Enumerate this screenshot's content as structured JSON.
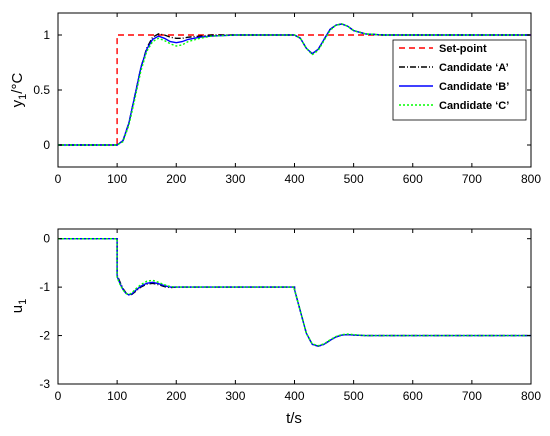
{
  "chart_data": [
    {
      "type": "line",
      "ylabel": "y",
      "ylabel_sub": "1",
      "ylabel_unit": "/°C",
      "xlim": [
        0,
        800
      ],
      "ylim": [
        -0.2,
        1.2
      ],
      "xticks": [
        "0",
        "100",
        "200",
        "300",
        "400",
        "500",
        "600",
        "700",
        "800"
      ],
      "yticks": [
        "0",
        "0.5",
        "1"
      ],
      "ytick_values": [
        0,
        0.5,
        1
      ],
      "grid": false,
      "legend_position": "right",
      "series": [
        {
          "name": "Set-point",
          "color": "#ff0000",
          "dash": "6,4",
          "x": [
            0,
            100,
            100,
            800
          ],
          "y": [
            0,
            0,
            1,
            1
          ]
        },
        {
          "name": "Candidate ‘A’",
          "color": "#000000",
          "dash": "6,2,1,2",
          "x": [
            0,
            100,
            110,
            120,
            130,
            140,
            150,
            160,
            170,
            180,
            190,
            200,
            210,
            220,
            240,
            260,
            300,
            350,
            400,
            410,
            420,
            430,
            440,
            450,
            460,
            470,
            480,
            490,
            500,
            520,
            550,
            600,
            800
          ],
          "y": [
            0,
            0,
            0.04,
            0.2,
            0.45,
            0.7,
            0.88,
            0.98,
            1.01,
            1.0,
            0.98,
            0.97,
            0.97,
            0.98,
            0.99,
            1.0,
            1.0,
            1.0,
            1.0,
            0.97,
            0.88,
            0.83,
            0.87,
            0.96,
            1.05,
            1.09,
            1.1,
            1.08,
            1.04,
            1.01,
            1.0,
            1.0,
            1.0
          ]
        },
        {
          "name": "Candidate ‘B’",
          "color": "#0000ff",
          "dash": "",
          "x": [
            0,
            100,
            110,
            120,
            130,
            140,
            150,
            160,
            170,
            180,
            190,
            200,
            210,
            220,
            240,
            260,
            300,
            350,
            400,
            410,
            420,
            430,
            440,
            450,
            460,
            470,
            480,
            490,
            500,
            520,
            550,
            600,
            800
          ],
          "y": [
            0,
            0,
            0.04,
            0.2,
            0.45,
            0.7,
            0.87,
            0.96,
            0.99,
            0.97,
            0.94,
            0.93,
            0.94,
            0.96,
            0.98,
            0.99,
            1.0,
            1.0,
            1.0,
            0.97,
            0.88,
            0.83,
            0.87,
            0.96,
            1.05,
            1.09,
            1.1,
            1.08,
            1.04,
            1.01,
            1.0,
            1.0,
            1.0
          ]
        },
        {
          "name": "Candidate ‘C’",
          "color": "#00ff00",
          "dash": "2,2",
          "x": [
            0,
            100,
            110,
            120,
            130,
            140,
            150,
            160,
            170,
            180,
            190,
            200,
            210,
            220,
            240,
            260,
            300,
            350,
            400,
            410,
            420,
            430,
            440,
            450,
            460,
            470,
            480,
            490,
            500,
            520,
            550,
            600,
            800
          ],
          "y": [
            0,
            0,
            0.03,
            0.18,
            0.42,
            0.67,
            0.85,
            0.94,
            0.97,
            0.95,
            0.92,
            0.9,
            0.91,
            0.94,
            0.97,
            0.99,
            1.0,
            1.0,
            1.0,
            0.97,
            0.88,
            0.82,
            0.86,
            0.95,
            1.04,
            1.09,
            1.1,
            1.08,
            1.04,
            1.01,
            1.0,
            1.0,
            1.0
          ]
        }
      ]
    },
    {
      "type": "line",
      "xlabel": "t/s",
      "ylabel": "u",
      "ylabel_sub": "1",
      "xlim": [
        0,
        800
      ],
      "ylim": [
        -3,
        0.2
      ],
      "xticks": [
        "0",
        "100",
        "200",
        "300",
        "400",
        "500",
        "600",
        "700",
        "800"
      ],
      "yticks": [
        "0",
        "-1",
        "-2",
        "-3"
      ],
      "ytick_values": [
        0,
        -1,
        -2,
        -3
      ],
      "grid": false,
      "series": [
        {
          "name": "Candidate ‘A’",
          "color": "#000000",
          "dash": "6,2,1,2",
          "x": [
            0,
            100,
            100,
            105,
            110,
            115,
            120,
            125,
            130,
            140,
            150,
            160,
            170,
            180,
            190,
            200,
            220,
            250,
            300,
            400,
            400,
            410,
            420,
            430,
            440,
            450,
            460,
            470,
            480,
            490,
            500,
            520,
            550,
            600,
            800
          ],
          "y": [
            0,
            0,
            -0.75,
            -0.9,
            -1.03,
            -1.12,
            -1.16,
            -1.15,
            -1.1,
            -1.0,
            -0.94,
            -0.92,
            -0.95,
            -0.99,
            -1.01,
            -1.0,
            -1.0,
            -1.0,
            -1.0,
            -1.0,
            -1.05,
            -1.5,
            -1.95,
            -2.18,
            -2.22,
            -2.18,
            -2.1,
            -2.03,
            -1.99,
            -1.98,
            -1.99,
            -2.0,
            -2.0,
            -2.0,
            -2.0
          ]
        },
        {
          "name": "Candidate ‘B’",
          "color": "#0000ff",
          "dash": "",
          "x": [
            0,
            100,
            100,
            105,
            110,
            115,
            120,
            125,
            130,
            140,
            150,
            160,
            170,
            180,
            190,
            200,
            220,
            250,
            300,
            400,
            400,
            410,
            420,
            430,
            440,
            450,
            460,
            470,
            480,
            490,
            500,
            520,
            550,
            600,
            800
          ],
          "y": [
            0,
            0,
            -0.78,
            -0.93,
            -1.05,
            -1.13,
            -1.16,
            -1.14,
            -1.08,
            -0.98,
            -0.92,
            -0.9,
            -0.93,
            -0.97,
            -1.0,
            -1.0,
            -1.0,
            -1.0,
            -1.0,
            -1.0,
            -1.05,
            -1.5,
            -1.95,
            -2.18,
            -2.22,
            -2.18,
            -2.1,
            -2.03,
            -1.99,
            -1.98,
            -1.99,
            -2.0,
            -2.0,
            -2.0,
            -2.0
          ]
        },
        {
          "name": "Candidate ‘C’",
          "color": "#00ff00",
          "dash": "2,2",
          "x": [
            0,
            100,
            100,
            105,
            110,
            115,
            120,
            125,
            130,
            140,
            150,
            160,
            170,
            180,
            190,
            200,
            220,
            250,
            300,
            400,
            400,
            410,
            420,
            430,
            440,
            450,
            460,
            470,
            480,
            490,
            500,
            520,
            550,
            600,
            800
          ],
          "y": [
            0,
            0,
            -0.8,
            -0.95,
            -1.06,
            -1.13,
            -1.15,
            -1.12,
            -1.05,
            -0.95,
            -0.88,
            -0.86,
            -0.9,
            -0.95,
            -0.99,
            -1.0,
            -1.0,
            -1.0,
            -1.0,
            -1.0,
            -1.05,
            -1.5,
            -1.95,
            -2.17,
            -2.21,
            -2.17,
            -2.09,
            -2.02,
            -1.98,
            -1.97,
            -1.98,
            -2.0,
            -2.0,
            -2.0,
            -2.0
          ]
        }
      ]
    }
  ]
}
